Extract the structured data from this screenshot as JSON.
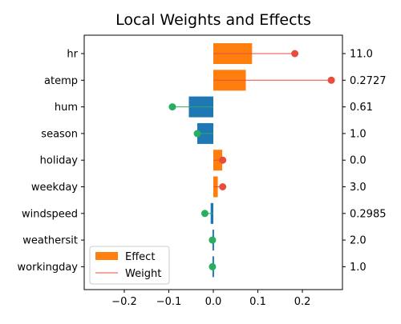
{
  "chart_data": {
    "type": "bar",
    "orientation": "horizontal",
    "title": "Local Weights and Effects",
    "xlabel": "",
    "ylabel": "",
    "xlim": [
      -0.29,
      0.29
    ],
    "xticks": [
      -0.2,
      -0.1,
      0.0,
      0.1,
      0.2
    ],
    "xtick_labels": [
      "−0.2",
      "−0.1",
      "0.0",
      "0.1",
      "0.2"
    ],
    "grid": false,
    "legend_position": "lower-left",
    "categories": [
      "hr",
      "atemp",
      "hum",
      "season",
      "holiday",
      "weekday",
      "windspeed",
      "weathersit",
      "workingday"
    ],
    "feature_values": [
      "11.0",
      "0.2727",
      "0.61",
      "1.0",
      "0.0",
      "3.0",
      "0.2985",
      "2.0",
      "1.0"
    ],
    "series": [
      {
        "name": "Effect",
        "kind": "bar",
        "values": [
          0.087,
          0.073,
          -0.055,
          -0.036,
          0.02,
          0.01,
          -0.006,
          -0.002,
          -0.002
        ]
      },
      {
        "name": "Weight",
        "kind": "lollipop",
        "values": [
          0.183,
          0.265,
          -0.092,
          -0.036,
          0.021,
          0.021,
          -0.019,
          -0.002,
          -0.002
        ]
      }
    ],
    "colors": {
      "positive": "#ff7f0e",
      "negative": "#1f77b4",
      "weight_positive": "#e74c3c",
      "weight_negative": "#27ae60",
      "legend_effect": "#ff7f0e",
      "legend_weight": "#e74c3c"
    }
  }
}
